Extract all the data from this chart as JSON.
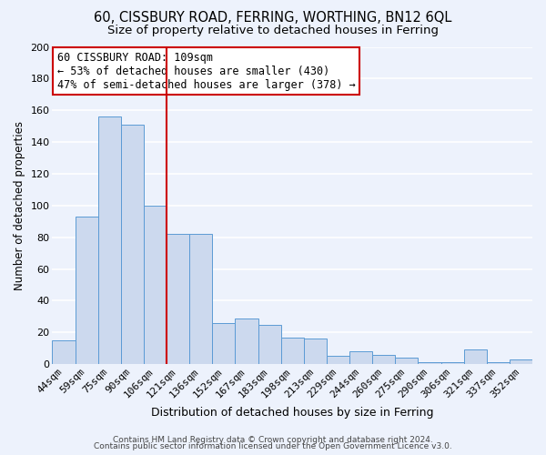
{
  "title": "60, CISSBURY ROAD, FERRING, WORTHING, BN12 6QL",
  "subtitle": "Size of property relative to detached houses in Ferring",
  "xlabel": "Distribution of detached houses by size in Ferring",
  "ylabel": "Number of detached properties",
  "categories": [
    "44sqm",
    "59sqm",
    "75sqm",
    "90sqm",
    "106sqm",
    "121sqm",
    "136sqm",
    "152sqm",
    "167sqm",
    "183sqm",
    "198sqm",
    "213sqm",
    "229sqm",
    "244sqm",
    "260sqm",
    "275sqm",
    "290sqm",
    "306sqm",
    "321sqm",
    "337sqm",
    "352sqm"
  ],
  "values": [
    15,
    93,
    156,
    151,
    100,
    82,
    82,
    26,
    29,
    25,
    17,
    16,
    5,
    8,
    6,
    4,
    1,
    1,
    9,
    1,
    3
  ],
  "bar_color": "#ccd9ee",
  "bar_edge_color": "#5b9bd5",
  "vline_color": "#cc0000",
  "vline_x_index": 4,
  "ylim": [
    0,
    200
  ],
  "yticks": [
    0,
    20,
    40,
    60,
    80,
    100,
    120,
    140,
    160,
    180,
    200
  ],
  "annotation_title": "60 CISSBURY ROAD: 109sqm",
  "annotation_line1": "← 53% of detached houses are smaller (430)",
  "annotation_line2": "47% of semi-detached houses are larger (378) →",
  "annotation_box_color": "#ffffff",
  "annotation_box_edge": "#cc0000",
  "footer1": "Contains HM Land Registry data © Crown copyright and database right 2024.",
  "footer2": "Contains public sector information licensed under the Open Government Licence v3.0.",
  "background_color": "#edf2fc",
  "grid_color": "#ffffff",
  "title_fontsize": 10.5,
  "subtitle_fontsize": 9.5,
  "ylabel_fontsize": 8.5,
  "xlabel_fontsize": 9,
  "tick_fontsize": 8,
  "annotation_fontsize": 8.5,
  "footer_fontsize": 6.5
}
